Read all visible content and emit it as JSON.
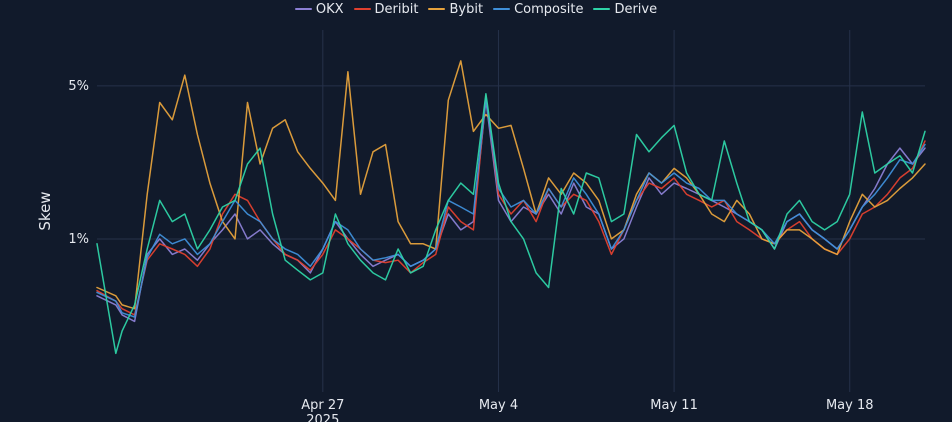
{
  "chart_data": {
    "type": "line",
    "ylabel": "Skew",
    "yscale": "log",
    "ylim": [
      0.2,
      9
    ],
    "xlim": [
      "2025-04-18",
      "2025-05-21"
    ],
    "y_ticks": [
      {
        "value": 1,
        "label": "1%"
      },
      {
        "value": 5,
        "label": "5%"
      }
    ],
    "x_ticks": [
      {
        "value": "2025-04-27",
        "label": "Apr 27",
        "sublabel": "2025"
      },
      {
        "value": "2025-05-04",
        "label": "May 4"
      },
      {
        "value": "2025-05-11",
        "label": "May 11"
      },
      {
        "value": "2025-05-18",
        "label": "May 18"
      }
    ],
    "grid": true,
    "legend_position": "top-center",
    "series": [
      {
        "name": "OKX",
        "color": "#8b7fd4",
        "x": [
          "2025-04-18",
          "2025-04-18T18:00",
          "2025-04-19",
          "2025-04-19T12:00",
          "2025-04-20",
          "2025-04-20T12:00",
          "2025-04-21",
          "2025-04-21T12:00",
          "2025-04-22",
          "2025-04-22T12:00",
          "2025-04-23",
          "2025-04-23T12:00",
          "2025-04-24",
          "2025-04-24T12:00",
          "2025-04-25",
          "2025-04-25T12:00",
          "2025-04-26",
          "2025-04-26T12:00",
          "2025-04-27",
          "2025-04-27T12:00",
          "2025-04-28",
          "2025-04-28T12:00",
          "2025-04-29",
          "2025-04-29T12:00",
          "2025-04-30",
          "2025-04-30T12:00",
          "2025-05-01",
          "2025-05-01T12:00",
          "2025-05-02",
          "2025-05-02T12:00",
          "2025-05-03",
          "2025-05-03T12:00",
          "2025-05-04",
          "2025-05-04T12:00",
          "2025-05-05",
          "2025-05-05T12:00",
          "2025-05-06",
          "2025-05-06T12:00",
          "2025-05-07",
          "2025-05-07T12:00",
          "2025-05-08",
          "2025-05-08T12:00",
          "2025-05-09",
          "2025-05-09T12:00",
          "2025-05-10",
          "2025-05-10T12:00",
          "2025-05-11",
          "2025-05-11T12:00",
          "2025-05-12",
          "2025-05-12T12:00",
          "2025-05-13",
          "2025-05-13T12:00",
          "2025-05-14",
          "2025-05-14T12:00",
          "2025-05-15",
          "2025-05-15T12:00",
          "2025-05-16",
          "2025-05-16T12:00",
          "2025-05-17",
          "2025-05-17T12:00",
          "2025-05-18",
          "2025-05-18T12:00",
          "2025-05-19",
          "2025-05-19T12:00",
          "2025-05-20",
          "2025-05-20T12:00",
          "2025-05-21"
        ],
        "values": [
          0.55,
          0.5,
          0.45,
          0.42,
          0.85,
          1.0,
          0.85,
          0.9,
          0.8,
          0.95,
          1.1,
          1.3,
          1.0,
          1.1,
          0.95,
          0.85,
          0.8,
          0.7,
          0.9,
          1.2,
          1.0,
          0.85,
          0.75,
          0.8,
          0.85,
          0.75,
          0.8,
          0.9,
          1.3,
          1.1,
          1.2,
          4.3,
          1.5,
          1.2,
          1.4,
          1.3,
          1.6,
          1.3,
          1.8,
          1.4,
          1.3,
          0.9,
          1.0,
          1.4,
          1.9,
          1.6,
          1.8,
          1.7,
          1.6,
          1.5,
          1.4,
          1.3,
          1.2,
          1.1,
          0.9,
          1.2,
          1.3,
          1.1,
          1.0,
          0.9,
          1.1,
          1.4,
          1.7,
          2.2,
          2.6,
          2.2,
          2.6
        ]
      },
      {
        "name": "Deribit",
        "color": "#e0402f",
        "x": [
          "2025-04-18",
          "2025-04-18T18:00",
          "2025-04-19",
          "2025-04-19T12:00",
          "2025-04-20",
          "2025-04-20T12:00",
          "2025-04-21",
          "2025-04-21T12:00",
          "2025-04-22",
          "2025-04-22T12:00",
          "2025-04-23",
          "2025-04-23T12:00",
          "2025-04-24",
          "2025-04-24T12:00",
          "2025-04-25",
          "2025-04-25T12:00",
          "2025-04-26",
          "2025-04-26T12:00",
          "2025-04-27",
          "2025-04-27T12:00",
          "2025-04-28",
          "2025-04-28T12:00",
          "2025-04-29",
          "2025-04-29T12:00",
          "2025-04-30",
          "2025-04-30T12:00",
          "2025-05-01",
          "2025-05-01T12:00",
          "2025-05-02",
          "2025-05-02T12:00",
          "2025-05-03",
          "2025-05-03T12:00",
          "2025-05-04",
          "2025-05-04T12:00",
          "2025-05-05",
          "2025-05-05T12:00",
          "2025-05-06",
          "2025-05-06T12:00",
          "2025-05-07",
          "2025-05-07T12:00",
          "2025-05-08",
          "2025-05-08T12:00",
          "2025-05-09",
          "2025-05-09T12:00",
          "2025-05-10",
          "2025-05-10T12:00",
          "2025-05-11",
          "2025-05-11T12:00",
          "2025-05-12",
          "2025-05-12T12:00",
          "2025-05-13",
          "2025-05-13T12:00",
          "2025-05-14",
          "2025-05-14T12:00",
          "2025-05-15",
          "2025-05-15T12:00",
          "2025-05-16",
          "2025-05-16T12:00",
          "2025-05-17",
          "2025-05-17T12:00",
          "2025-05-18",
          "2025-05-18T12:00",
          "2025-05-19",
          "2025-05-19T12:00",
          "2025-05-20",
          "2025-05-20T12:00",
          "2025-05-21"
        ],
        "values": [
          0.58,
          0.52,
          0.48,
          0.45,
          0.8,
          0.95,
          0.9,
          0.85,
          0.75,
          0.9,
          1.3,
          1.6,
          1.5,
          1.2,
          1.0,
          0.85,
          0.8,
          0.72,
          0.85,
          1.1,
          1.0,
          0.9,
          0.8,
          0.78,
          0.8,
          0.7,
          0.78,
          0.85,
          1.4,
          1.2,
          1.1,
          4.5,
          1.6,
          1.3,
          1.5,
          1.2,
          1.7,
          1.4,
          1.6,
          1.5,
          1.2,
          0.85,
          1.1,
          1.5,
          1.8,
          1.7,
          1.9,
          1.6,
          1.5,
          1.4,
          1.5,
          1.2,
          1.1,
          1.0,
          0.95,
          1.1,
          1.2,
          1.0,
          0.9,
          0.85,
          1.0,
          1.3,
          1.4,
          1.6,
          1.9,
          2.1,
          2.8
        ]
      },
      {
        "name": "Bybit",
        "color": "#e6a23c",
        "x": [
          "2025-04-18",
          "2025-04-18T18:00",
          "2025-04-19",
          "2025-04-19T12:00",
          "2025-04-20",
          "2025-04-20T12:00",
          "2025-04-21",
          "2025-04-21T12:00",
          "2025-04-22",
          "2025-04-22T12:00",
          "2025-04-23",
          "2025-04-23T12:00",
          "2025-04-24",
          "2025-04-24T12:00",
          "2025-04-25",
          "2025-04-25T12:00",
          "2025-04-26",
          "2025-04-26T12:00",
          "2025-04-27",
          "2025-04-27T12:00",
          "2025-04-28",
          "2025-04-28T12:00",
          "2025-04-29",
          "2025-04-29T12:00",
          "2025-04-30",
          "2025-04-30T12:00",
          "2025-05-01",
          "2025-05-01T12:00",
          "2025-05-02",
          "2025-05-02T12:00",
          "2025-05-03",
          "2025-05-03T12:00",
          "2025-05-04",
          "2025-05-04T12:00",
          "2025-05-05",
          "2025-05-05T12:00",
          "2025-05-06",
          "2025-05-06T12:00",
          "2025-05-07",
          "2025-05-07T12:00",
          "2025-05-08",
          "2025-05-08T12:00",
          "2025-05-09",
          "2025-05-09T12:00",
          "2025-05-10",
          "2025-05-10T12:00",
          "2025-05-11",
          "2025-05-11T12:00",
          "2025-05-12",
          "2025-05-12T12:00",
          "2025-05-13",
          "2025-05-13T12:00",
          "2025-05-14",
          "2025-05-14T12:00",
          "2025-05-15",
          "2025-05-15T12:00",
          "2025-05-16",
          "2025-05-16T12:00",
          "2025-05-17",
          "2025-05-17T12:00",
          "2025-05-18",
          "2025-05-18T12:00",
          "2025-05-19",
          "2025-05-19T12:00",
          "2025-05-20",
          "2025-05-20T12:00",
          "2025-05-21"
        ],
        "values": [
          0.6,
          0.55,
          0.5,
          0.48,
          1.6,
          4.2,
          3.5,
          5.6,
          3.0,
          1.8,
          1.2,
          1.0,
          4.2,
          2.2,
          3.2,
          3.5,
          2.5,
          2.1,
          1.8,
          1.5,
          5.8,
          1.6,
          2.5,
          2.7,
          1.2,
          0.95,
          0.95,
          0.9,
          4.3,
          6.5,
          3.1,
          3.7,
          3.2,
          3.3,
          2.1,
          1.3,
          1.9,
          1.6,
          2.0,
          1.8,
          1.5,
          1.0,
          1.1,
          1.6,
          2.0,
          1.8,
          2.1,
          1.9,
          1.6,
          1.3,
          1.2,
          1.5,
          1.3,
          1.0,
          0.95,
          1.1,
          1.1,
          1.0,
          0.9,
          0.85,
          1.2,
          1.6,
          1.4,
          1.5,
          1.7,
          1.9,
          2.2
        ]
      },
      {
        "name": "Composite",
        "color": "#3f8fd9",
        "x": [
          "2025-04-18",
          "2025-04-18T18:00",
          "2025-04-19",
          "2025-04-19T12:00",
          "2025-04-20",
          "2025-04-20T12:00",
          "2025-04-21",
          "2025-04-21T12:00",
          "2025-04-22",
          "2025-04-22T12:00",
          "2025-04-23",
          "2025-04-23T12:00",
          "2025-04-24",
          "2025-04-24T12:00",
          "2025-04-25",
          "2025-04-25T12:00",
          "2025-04-26",
          "2025-04-26T12:00",
          "2025-04-27",
          "2025-04-27T12:00",
          "2025-04-28",
          "2025-04-28T12:00",
          "2025-04-29",
          "2025-04-29T12:00",
          "2025-04-30",
          "2025-04-30T12:00",
          "2025-05-01",
          "2025-05-01T12:00",
          "2025-05-02",
          "2025-05-02T12:00",
          "2025-05-03",
          "2025-05-03T12:00",
          "2025-05-04",
          "2025-05-04T12:00",
          "2025-05-05",
          "2025-05-05T12:00",
          "2025-05-06",
          "2025-05-06T12:00",
          "2025-05-07",
          "2025-05-07T12:00",
          "2025-05-08",
          "2025-05-08T12:00",
          "2025-05-09",
          "2025-05-09T12:00",
          "2025-05-10",
          "2025-05-10T12:00",
          "2025-05-11",
          "2025-05-11T12:00",
          "2025-05-12",
          "2025-05-12T12:00",
          "2025-05-13",
          "2025-05-13T12:00",
          "2025-05-14",
          "2025-05-14T12:00",
          "2025-05-15",
          "2025-05-15T12:00",
          "2025-05-16",
          "2025-05-16T12:00",
          "2025-05-17",
          "2025-05-17T12:00",
          "2025-05-18",
          "2025-05-18T12:00",
          "2025-05-19",
          "2025-05-19T12:00",
          "2025-05-20",
          "2025-05-20T12:00",
          "2025-05-21"
        ],
        "values": [
          0.57,
          0.52,
          0.46,
          0.44,
          0.82,
          1.05,
          0.95,
          1.0,
          0.85,
          0.95,
          1.2,
          1.5,
          1.3,
          1.2,
          1.0,
          0.9,
          0.85,
          0.75,
          0.9,
          1.2,
          1.1,
          0.9,
          0.8,
          0.82,
          0.85,
          0.75,
          0.8,
          0.9,
          1.5,
          1.4,
          1.3,
          4.4,
          1.7,
          1.4,
          1.5,
          1.3,
          1.7,
          1.4,
          1.9,
          1.6,
          1.3,
          0.9,
          1.1,
          1.5,
          2.0,
          1.8,
          2.0,
          1.8,
          1.7,
          1.5,
          1.5,
          1.3,
          1.2,
          1.1,
          0.95,
          1.2,
          1.3,
          1.1,
          1.0,
          0.9,
          1.1,
          1.4,
          1.6,
          1.9,
          2.3,
          2.2,
          2.7
        ]
      },
      {
        "name": "Derive",
        "color": "#2ed3a7",
        "x": [
          "2025-04-18",
          "2025-04-18T18:00",
          "2025-04-19",
          "2025-04-19T12:00",
          "2025-04-20",
          "2025-04-20T12:00",
          "2025-04-21",
          "2025-04-21T12:00",
          "2025-04-22",
          "2025-04-22T12:00",
          "2025-04-23",
          "2025-04-23T12:00",
          "2025-04-24",
          "2025-04-24T12:00",
          "2025-04-25",
          "2025-04-25T12:00",
          "2025-04-26",
          "2025-04-26T12:00",
          "2025-04-27",
          "2025-04-27T12:00",
          "2025-04-28",
          "2025-04-28T12:00",
          "2025-04-29",
          "2025-04-29T12:00",
          "2025-04-30",
          "2025-04-30T12:00",
          "2025-05-01",
          "2025-05-01T12:00",
          "2025-05-02",
          "2025-05-02T12:00",
          "2025-05-03",
          "2025-05-03T12:00",
          "2025-05-04",
          "2025-05-04T12:00",
          "2025-05-05",
          "2025-05-05T12:00",
          "2025-05-06",
          "2025-05-06T12:00",
          "2025-05-07",
          "2025-05-07T12:00",
          "2025-05-08",
          "2025-05-08T12:00",
          "2025-05-09",
          "2025-05-09T12:00",
          "2025-05-10",
          "2025-05-10T12:00",
          "2025-05-11",
          "2025-05-11T12:00",
          "2025-05-12",
          "2025-05-12T12:00",
          "2025-05-13",
          "2025-05-13T12:00",
          "2025-05-14",
          "2025-05-14T12:00",
          "2025-05-15",
          "2025-05-15T12:00",
          "2025-05-16",
          "2025-05-16T12:00",
          "2025-05-17",
          "2025-05-17T12:00",
          "2025-05-18",
          "2025-05-18T12:00",
          "2025-05-19",
          "2025-05-19T12:00",
          "2025-05-20",
          "2025-05-20T12:00",
          "2025-05-21"
        ],
        "values": [
          0.95,
          0.3,
          0.38,
          0.5,
          0.9,
          1.5,
          1.2,
          1.3,
          0.9,
          1.1,
          1.4,
          1.5,
          2.2,
          2.6,
          1.3,
          0.8,
          0.72,
          0.65,
          0.7,
          1.3,
          0.95,
          0.8,
          0.7,
          0.65,
          0.9,
          0.7,
          0.75,
          1.1,
          1.5,
          1.8,
          1.6,
          4.6,
          1.8,
          1.2,
          1.0,
          0.7,
          0.6,
          1.7,
          1.3,
          2.0,
          1.9,
          1.2,
          1.3,
          3.0,
          2.5,
          2.9,
          3.3,
          2.0,
          1.6,
          1.5,
          2.8,
          1.8,
          1.2,
          1.1,
          0.9,
          1.3,
          1.5,
          1.2,
          1.1,
          1.2,
          1.6,
          3.8,
          2.0,
          2.2,
          2.4,
          2.0,
          3.1
        ]
      }
    ]
  }
}
